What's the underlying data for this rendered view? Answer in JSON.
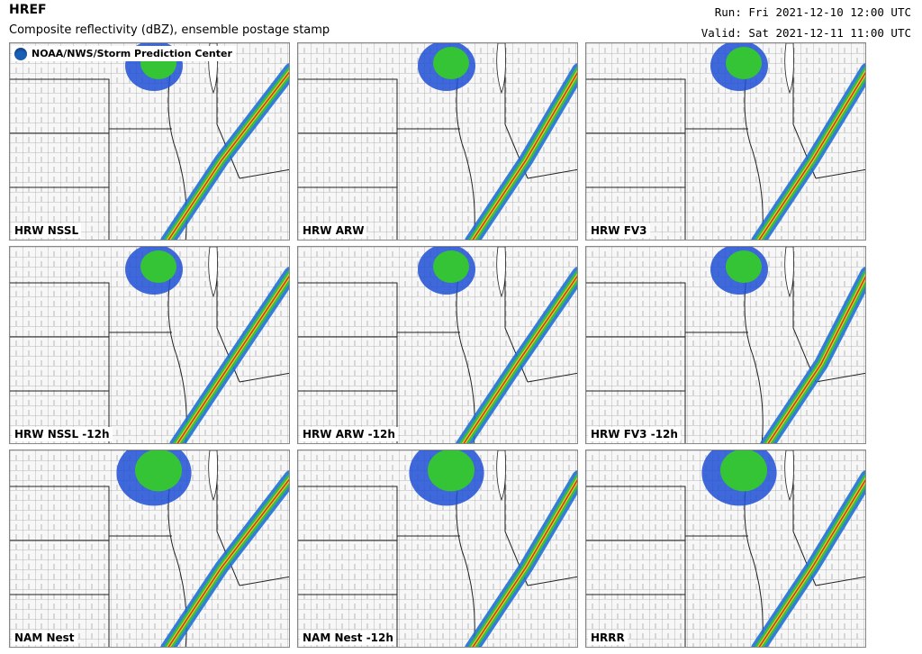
{
  "header": {
    "title": "HREF",
    "subtitle": "Composite reflectivity (dBZ), ensemble postage stamp",
    "run": "Run: Fri 2021-12-10 12:00 UTC",
    "valid": "Valid: Sat 2021-12-11 11:00 UTC",
    "logo_text": "NOAA/NWS/Storm Prediction Center"
  },
  "panels": [
    {
      "label": "HRW NSSL"
    },
    {
      "label": "HRW ARW"
    },
    {
      "label": "HRW FV3"
    },
    {
      "label": "HRW NSSL -12h"
    },
    {
      "label": "HRW ARW -12h"
    },
    {
      "label": "HRW FV3 -12h"
    },
    {
      "label": "NAM Nest"
    },
    {
      "label": "NAM Nest -12h"
    },
    {
      "label": "HRRR"
    }
  ]
}
